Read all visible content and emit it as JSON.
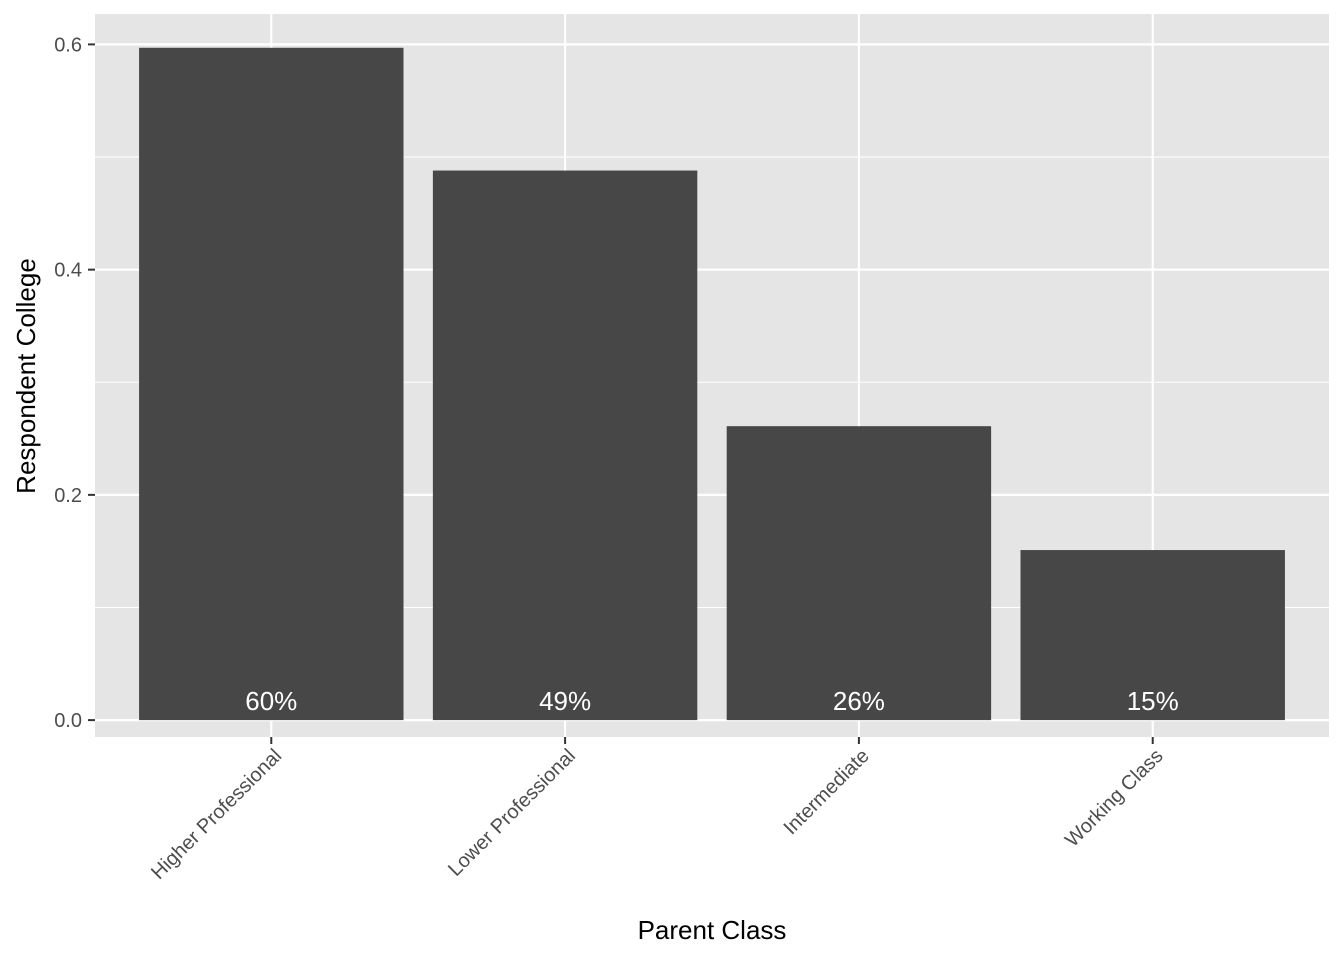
{
  "chart_data": {
    "type": "bar",
    "categories": [
      "Higher Professional",
      "Lower Professional",
      "Intermediate",
      "Working Class"
    ],
    "values": [
      0.597,
      0.488,
      0.261,
      0.151
    ],
    "bar_labels": [
      "60%",
      "49%",
      "26%",
      "15%"
    ],
    "xlabel": "Parent Class",
    "ylabel": "Respondent College",
    "ylim": [
      -0.015,
      0.627
    ],
    "yticks": [
      0.0,
      0.2,
      0.4,
      0.6
    ],
    "ytick_labels": [
      "0.0",
      "0.2",
      "0.4",
      "0.6"
    ],
    "grid": true,
    "colors": {
      "panel_background": "#e5e5e5",
      "grid": "#ffffff",
      "bar_fill": "#474747",
      "bar_label": "#ffffff",
      "tick": "#333333"
    }
  }
}
